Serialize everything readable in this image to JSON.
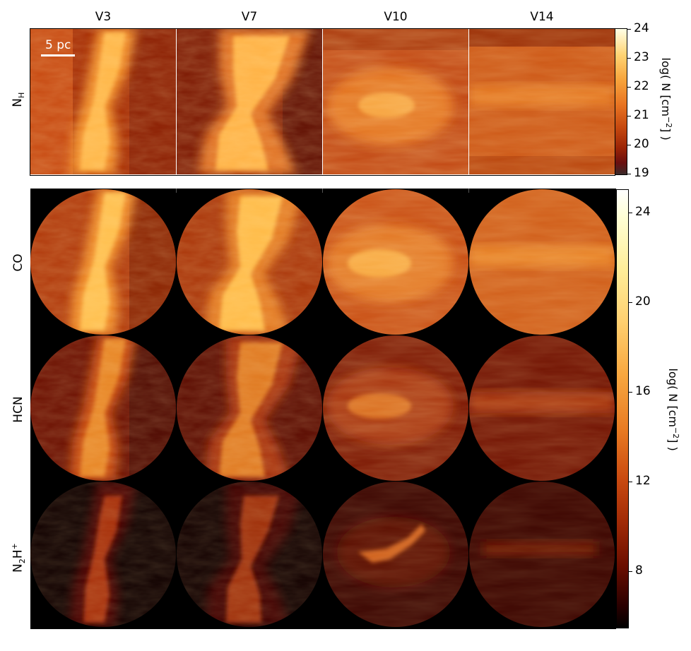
{
  "columns": [
    "V3",
    "V7",
    "V10",
    "V14"
  ],
  "rows": {
    "nh": {
      "main": "N",
      "sub": "H"
    },
    "co": "CO",
    "hcn": "HCN",
    "n2h": {
      "a": "N",
      "sub": "2",
      "b": "H",
      "sup": "+"
    }
  },
  "scalebar": "5 pc",
  "colorbar_top": {
    "title_pre": "log( N [cm",
    "title_sup": "−2",
    "title_post": "] )",
    "ticks": [
      "24",
      "23",
      "22",
      "21",
      "20",
      "19"
    ],
    "range": [
      19,
      24
    ]
  },
  "colorbar_bottom": {
    "title_pre": "log( N [cm",
    "title_sup": "−2",
    "title_post": "] )",
    "ticks": [
      "24",
      "20",
      "16",
      "12",
      "8"
    ],
    "range": [
      5.5,
      25
    ]
  },
  "colors": {
    "cmap": [
      "#000000",
      "#3a0200",
      "#7a1400",
      "#b33a08",
      "#e06a1a",
      "#f59a35",
      "#ffd070",
      "#ffffd8"
    ]
  }
}
